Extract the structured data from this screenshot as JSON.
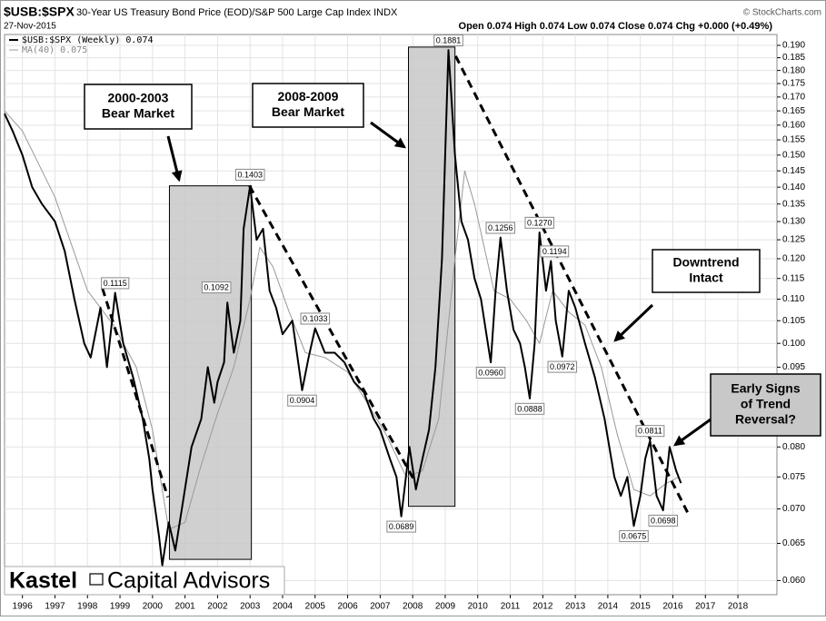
{
  "chart_data": {
    "type": "line",
    "symbol": "$USB:$SPX",
    "title": "30-Year US Treasury Bond Price (EOD)/S&P 500 Large Cap Index INDX",
    "date": "27-Nov-2015",
    "source": "© StockCharts.com",
    "quote": "Open 0.074  High 0.074  Low 0.074  Close 0.074  Chg +0.000 (+0.49%)",
    "log_scale": true,
    "grid": true,
    "xlim": [
      1995.45,
      2019.2
    ],
    "xticks": [
      1996,
      1997,
      1998,
      1999,
      2000,
      2001,
      2002,
      2003,
      2004,
      2005,
      2006,
      2007,
      2008,
      2009,
      2010,
      2011,
      2012,
      2013,
      2014,
      2015,
      2016,
      2017,
      2018
    ],
    "ylim": [
      0.0582,
      0.1945
    ],
    "yticks": [
      {
        "value": 0.06,
        "label": "0.060"
      },
      {
        "value": 0.065,
        "label": "0.065"
      },
      {
        "value": 0.07,
        "label": "0.070"
      },
      {
        "value": 0.075,
        "label": "0.075"
      },
      {
        "value": 0.08,
        "label": "0.080"
      },
      {
        "value": 0.085,
        "label": "0.085"
      },
      {
        "value": 0.09,
        "label": "0.090"
      },
      {
        "value": 0.095,
        "label": "0.095"
      },
      {
        "value": 0.1,
        "label": "0.100"
      },
      {
        "value": 0.105,
        "label": "0.105"
      },
      {
        "value": 0.11,
        "label": "0.110"
      },
      {
        "value": 0.115,
        "label": "0.115"
      },
      {
        "value": 0.12,
        "label": "0.120"
      },
      {
        "value": 0.125,
        "label": "0.125"
      },
      {
        "value": 0.13,
        "label": "0.130"
      },
      {
        "value": 0.135,
        "label": "0.135"
      },
      {
        "value": 0.14,
        "label": "0.140"
      },
      {
        "value": 0.145,
        "label": "0.145"
      },
      {
        "value": 0.15,
        "label": "0.150"
      },
      {
        "value": 0.155,
        "label": "0.155"
      },
      {
        "value": 0.16,
        "label": "0.160"
      },
      {
        "value": 0.165,
        "label": "0.165"
      },
      {
        "value": 0.17,
        "label": "0.170"
      },
      {
        "value": 0.175,
        "label": "0.175"
      },
      {
        "value": 0.18,
        "label": "0.180"
      },
      {
        "value": 0.185,
        "label": "0.185"
      },
      {
        "value": 0.19,
        "label": "0.190"
      }
    ],
    "series": [
      {
        "name": "$USB:$SPX (Weekly) 0.074",
        "color": "#000000",
        "x": [
          1995.45,
          1995.7,
          1996.0,
          1996.3,
          1996.6,
          1997.0,
          1997.3,
          1997.6,
          1997.9,
          1998.1,
          1998.4,
          1998.6,
          1998.85,
          1999.1,
          1999.4,
          1999.7,
          1999.9,
          2000.0,
          2000.2,
          2000.3,
          2000.5,
          2000.7,
          2000.9,
          2001.2,
          2001.5,
          2001.7,
          2001.9,
          2002.0,
          2002.2,
          2002.3,
          2002.5,
          2002.7,
          2002.8,
          2003.0,
          2003.2,
          2003.4,
          2003.6,
          2003.8,
          2004.0,
          2004.3,
          2004.6,
          2004.8,
          2005.0,
          2005.3,
          2005.6,
          2005.9,
          2006.2,
          2006.5,
          2006.8,
          2007.0,
          2007.3,
          2007.5,
          2007.65,
          2007.9,
          2008.1,
          2008.3,
          2008.5,
          2008.7,
          2008.9,
          2009.0,
          2009.1,
          2009.3,
          2009.5,
          2009.7,
          2009.9,
          2010.1,
          2010.4,
          2010.55,
          2010.7,
          2010.9,
          2011.1,
          2011.3,
          2011.45,
          2011.6,
          2011.75,
          2011.9,
          2012.1,
          2012.25,
          2012.4,
          2012.6,
          2012.8,
          2013.0,
          2013.3,
          2013.6,
          2013.9,
          2014.2,
          2014.4,
          2014.6,
          2014.8,
          2015.0,
          2015.15,
          2015.3,
          2015.5,
          2015.7,
          2015.9,
          2016.1,
          2016.25
        ],
        "values": [
          0.164,
          0.158,
          0.15,
          0.14,
          0.135,
          0.13,
          0.122,
          0.11,
          0.1,
          0.097,
          0.108,
          0.095,
          0.1115,
          0.1,
          0.093,
          0.085,
          0.078,
          0.073,
          0.066,
          0.062,
          0.068,
          0.064,
          0.07,
          0.08,
          0.085,
          0.095,
          0.088,
          0.092,
          0.096,
          0.1092,
          0.098,
          0.105,
          0.128,
          0.1403,
          0.125,
          0.128,
          0.112,
          0.108,
          0.102,
          0.105,
          0.0904,
          0.097,
          0.1033,
          0.098,
          0.098,
          0.096,
          0.092,
          0.09,
          0.085,
          0.083,
          0.078,
          0.075,
          0.0689,
          0.08,
          0.073,
          0.078,
          0.083,
          0.095,
          0.12,
          0.15,
          0.1881,
          0.15,
          0.13,
          0.125,
          0.115,
          0.11,
          0.096,
          0.112,
          0.1256,
          0.112,
          0.103,
          0.1,
          0.095,
          0.0888,
          0.1,
          0.127,
          0.112,
          0.1194,
          0.105,
          0.0972,
          0.112,
          0.108,
          0.1,
          0.093,
          0.085,
          0.075,
          0.072,
          0.075,
          0.0675,
          0.072,
          0.078,
          0.0811,
          0.072,
          0.0698,
          0.08,
          0.076,
          0.074
        ]
      },
      {
        "name": "MA(40) 0.075",
        "color": "#999999",
        "x": [
          1995.45,
          1996.0,
          1997.0,
          1998.0,
          1998.8,
          1999.5,
          2000.0,
          2000.5,
          2001.0,
          2001.5,
          2002.0,
          2002.5,
          2003.0,
          2003.3,
          2003.7,
          2004.2,
          2004.7,
          2005.3,
          2006.0,
          2006.6,
          2007.2,
          2007.8,
          2008.3,
          2008.8,
          2009.3,
          2009.6,
          2009.9,
          2010.5,
          2011.0,
          2011.5,
          2011.9,
          2012.3,
          2012.8,
          2013.3,
          2013.8,
          2014.3,
          2014.8,
          2015.3,
          2015.8,
          2016.2
        ],
        "values": [
          0.165,
          0.158,
          0.137,
          0.112,
          0.104,
          0.095,
          0.083,
          0.067,
          0.068,
          0.077,
          0.086,
          0.095,
          0.11,
          0.123,
          0.118,
          0.107,
          0.098,
          0.097,
          0.094,
          0.088,
          0.082,
          0.075,
          0.076,
          0.085,
          0.12,
          0.145,
          0.135,
          0.112,
          0.11,
          0.105,
          0.1,
          0.112,
          0.107,
          0.104,
          0.095,
          0.082,
          0.073,
          0.072,
          0.074,
          0.075
        ]
      }
    ],
    "point_labels": [
      {
        "x": 1998.85,
        "value": 0.1115,
        "label": "0.1115"
      },
      {
        "x": 2002.3,
        "value": 0.1092,
        "label": "0.1092"
      },
      {
        "x": 2003.0,
        "value": 0.1403,
        "label": "0.1403"
      },
      {
        "x": 2004.6,
        "value": 0.0904,
        "label": "0.0904"
      },
      {
        "x": 2005.0,
        "value": 0.1033,
        "label": "0.1033"
      },
      {
        "x": 2007.65,
        "value": 0.0689,
        "label": "0.0689"
      },
      {
        "x": 2009.1,
        "value": 0.1881,
        "label": "0.1881"
      },
      {
        "x": 2010.4,
        "value": 0.096,
        "label": "0.0960"
      },
      {
        "x": 2010.7,
        "value": 0.1256,
        "label": "0.1256"
      },
      {
        "x": 2011.6,
        "value": 0.0888,
        "label": "0.0888"
      },
      {
        "x": 2011.9,
        "value": 0.127,
        "label": "0.1270"
      },
      {
        "x": 2012.25,
        "value": 0.1194,
        "label": "0.1194"
      },
      {
        "x": 2012.6,
        "value": 0.0972,
        "label": "0.0972"
      },
      {
        "x": 2015.3,
        "value": 0.0811,
        "label": "0.0811"
      },
      {
        "x": 2014.8,
        "value": 0.0675,
        "label": "0.0675"
      },
      {
        "x": 2015.7,
        "value": 0.0698,
        "label": "0.0698"
      }
    ],
    "shaded_periods": [
      {
        "x": [
          2000.52,
          2003.04
        ],
        "y": [
          0.0628,
          0.1404
        ]
      },
      {
        "x": [
          2007.87,
          2009.3
        ],
        "y": [
          0.0704,
          0.1893
        ]
      }
    ],
    "trend_lines": [
      {
        "x": [
          1998.46,
          2000.47
        ],
        "y": [
          0.1126,
          0.0718
        ]
      },
      {
        "x": [
          2002.98,
          2008.09
        ],
        "y": [
          0.1404,
          0.0741
        ]
      },
      {
        "x": [
          2009.32,
          2016.45
        ],
        "y": [
          0.1857,
          0.0695
        ]
      }
    ],
    "annotations": [
      {
        "text": [
          "2000-2003",
          "Bear Market"
        ]
      },
      {
        "text": [
          "2008-2009",
          "Bear Market"
        ]
      },
      {
        "text": [
          "Downtrend",
          "Intact"
        ]
      },
      {
        "text": [
          "Early Signs",
          "of Trend",
          "Reversal?"
        ]
      }
    ],
    "watermark": [
      "Kastel",
      "Capital Advisors"
    ]
  }
}
